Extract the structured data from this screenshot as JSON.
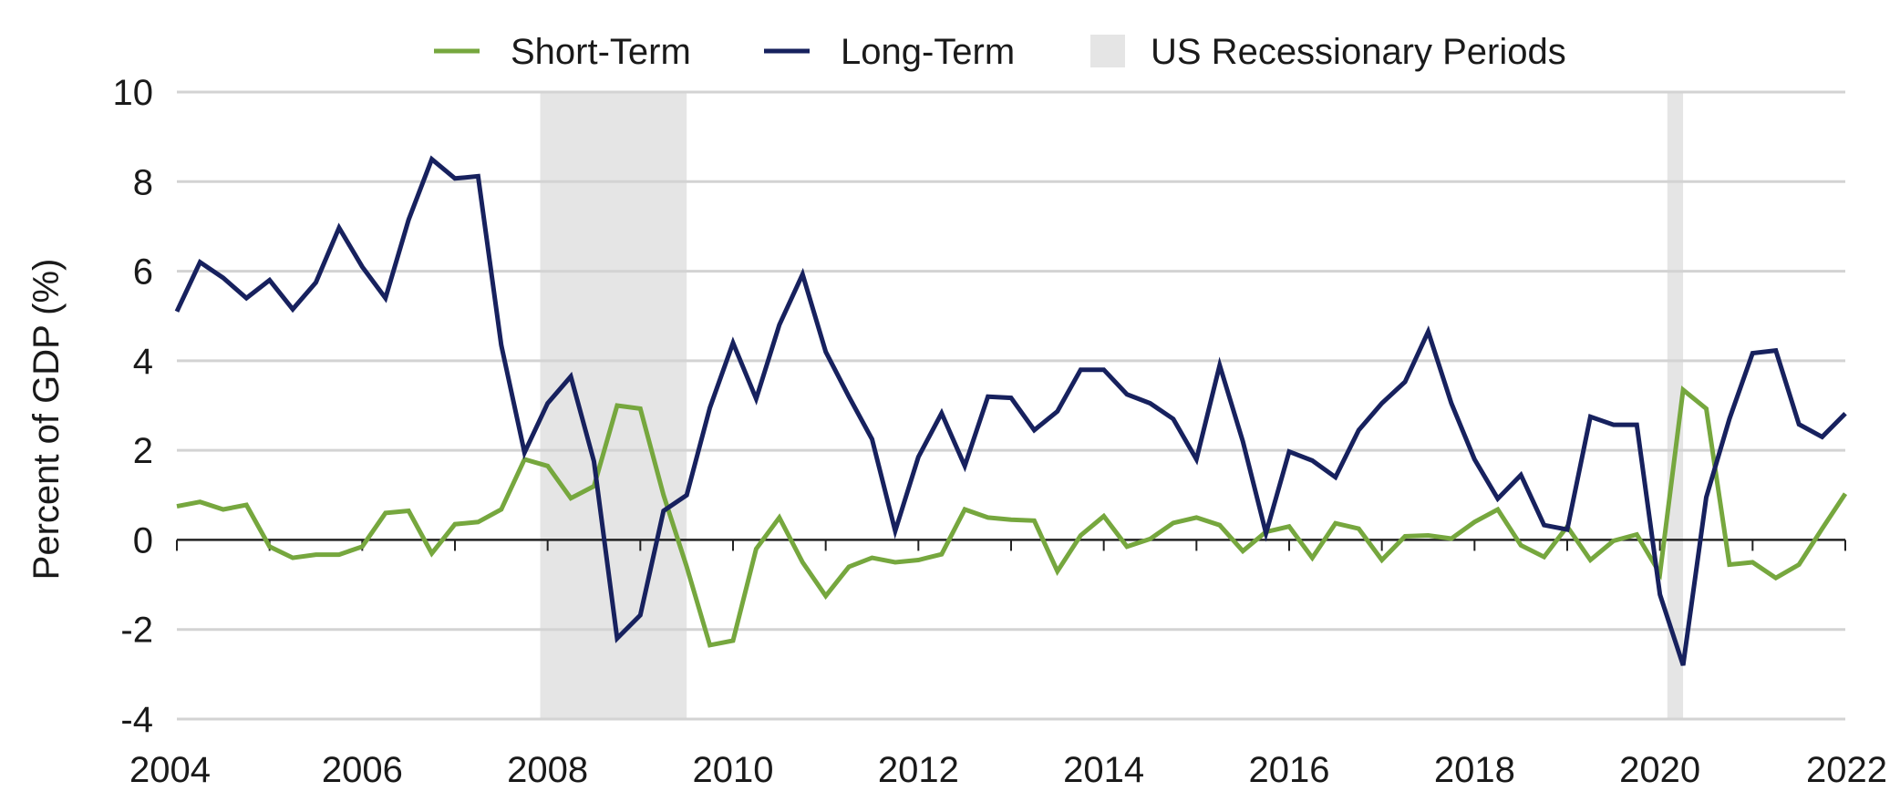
{
  "chart_data": {
    "type": "line",
    "title": "",
    "xlabel": "",
    "ylabel": "Percent of GDP (%)",
    "xlim": [
      2004,
      2022
    ],
    "ylim": [
      -4,
      10
    ],
    "x_ticks": [
      "2004",
      "2006",
      "2008",
      "2010",
      "2012",
      "2014",
      "2016",
      "2018",
      "2020",
      "2022"
    ],
    "y_ticks": [
      "10",
      "8",
      "6",
      "4",
      "2",
      "0",
      "-2",
      "-4"
    ],
    "grid": "horizontal",
    "legend_position": "top-center",
    "recession_label": "US Recessionary Periods",
    "recessions": [
      [
        2007.92,
        2009.5
      ],
      [
        2020.08,
        2020.25
      ]
    ],
    "series": [
      {
        "name": "Short-Term",
        "color": "#76a73e",
        "points": [
          [
            2004.0,
            0.75
          ],
          [
            2004.25,
            0.85
          ],
          [
            2004.5,
            0.68
          ],
          [
            2004.75,
            0.78
          ],
          [
            2005.0,
            -0.15
          ],
          [
            2005.25,
            -0.4
          ],
          [
            2005.5,
            -0.33
          ],
          [
            2005.75,
            -0.33
          ],
          [
            2006.0,
            -0.15
          ],
          [
            2006.25,
            0.6
          ],
          [
            2006.5,
            0.65
          ],
          [
            2006.75,
            -0.3
          ],
          [
            2007.0,
            0.35
          ],
          [
            2007.25,
            0.4
          ],
          [
            2007.5,
            0.68
          ],
          [
            2007.75,
            1.8
          ],
          [
            2008.0,
            1.65
          ],
          [
            2008.25,
            0.93
          ],
          [
            2008.5,
            1.2
          ],
          [
            2008.75,
            3.0
          ],
          [
            2009.0,
            2.93
          ],
          [
            2009.25,
            1.0
          ],
          [
            2009.5,
            -0.6
          ],
          [
            2009.75,
            -2.35
          ],
          [
            2010.0,
            -2.25
          ],
          [
            2010.25,
            -0.2
          ],
          [
            2010.5,
            0.5
          ],
          [
            2010.75,
            -0.5
          ],
          [
            2011.0,
            -1.25
          ],
          [
            2011.25,
            -0.6
          ],
          [
            2011.5,
            -0.4
          ],
          [
            2011.75,
            -0.5
          ],
          [
            2012.0,
            -0.45
          ],
          [
            2012.25,
            -0.32
          ],
          [
            2012.5,
            0.68
          ],
          [
            2012.75,
            0.5
          ],
          [
            2013.0,
            0.45
          ],
          [
            2013.25,
            0.43
          ],
          [
            2013.5,
            -0.7
          ],
          [
            2013.75,
            0.1
          ],
          [
            2014.0,
            0.53
          ],
          [
            2014.25,
            -0.15
          ],
          [
            2014.5,
            0.02
          ],
          [
            2014.75,
            0.38
          ],
          [
            2015.0,
            0.5
          ],
          [
            2015.25,
            0.33
          ],
          [
            2015.5,
            -0.25
          ],
          [
            2015.75,
            0.18
          ],
          [
            2016.0,
            0.3
          ],
          [
            2016.25,
            -0.4
          ],
          [
            2016.5,
            0.37
          ],
          [
            2016.75,
            0.25
          ],
          [
            2017.0,
            -0.45
          ],
          [
            2017.25,
            0.08
          ],
          [
            2017.5,
            0.1
          ],
          [
            2017.75,
            0.03
          ],
          [
            2018.0,
            0.4
          ],
          [
            2018.25,
            0.68
          ],
          [
            2018.5,
            -0.12
          ],
          [
            2018.75,
            -0.38
          ],
          [
            2019.0,
            0.3
          ],
          [
            2019.25,
            -0.45
          ],
          [
            2019.5,
            -0.02
          ],
          [
            2019.75,
            0.12
          ],
          [
            2020.0,
            -0.75
          ],
          [
            2020.25,
            3.35
          ],
          [
            2020.5,
            2.93
          ],
          [
            2020.75,
            -0.55
          ],
          [
            2021.0,
            -0.5
          ],
          [
            2021.25,
            -0.85
          ],
          [
            2021.5,
            -0.55
          ],
          [
            2021.75,
            0.25
          ],
          [
            2022.0,
            1.03
          ]
        ]
      },
      {
        "name": "Long-Term",
        "color": "#17215e",
        "points": [
          [
            2004.0,
            5.1
          ],
          [
            2004.25,
            6.2
          ],
          [
            2004.5,
            5.85
          ],
          [
            2004.75,
            5.4
          ],
          [
            2005.0,
            5.8
          ],
          [
            2005.25,
            5.15
          ],
          [
            2005.5,
            5.75
          ],
          [
            2005.75,
            6.97
          ],
          [
            2006.0,
            6.1
          ],
          [
            2006.25,
            5.4
          ],
          [
            2006.5,
            7.15
          ],
          [
            2006.75,
            8.5
          ],
          [
            2007.0,
            8.07
          ],
          [
            2007.25,
            8.12
          ],
          [
            2007.5,
            4.35
          ],
          [
            2007.75,
            1.95
          ],
          [
            2008.0,
            3.05
          ],
          [
            2008.25,
            3.65
          ],
          [
            2008.5,
            1.75
          ],
          [
            2008.75,
            -2.2
          ],
          [
            2009.0,
            -1.68
          ],
          [
            2009.25,
            0.65
          ],
          [
            2009.5,
            1.0
          ],
          [
            2009.75,
            2.95
          ],
          [
            2010.0,
            4.4
          ],
          [
            2010.25,
            3.15
          ],
          [
            2010.5,
            4.8
          ],
          [
            2010.75,
            5.93
          ],
          [
            2011.0,
            4.2
          ],
          [
            2011.25,
            3.2
          ],
          [
            2011.5,
            2.25
          ],
          [
            2011.75,
            0.2
          ],
          [
            2012.0,
            1.85
          ],
          [
            2012.25,
            2.83
          ],
          [
            2012.5,
            1.65
          ],
          [
            2012.75,
            3.2
          ],
          [
            2013.0,
            3.17
          ],
          [
            2013.25,
            2.45
          ],
          [
            2013.5,
            2.87
          ],
          [
            2013.75,
            3.8
          ],
          [
            2014.0,
            3.8
          ],
          [
            2014.25,
            3.25
          ],
          [
            2014.5,
            3.05
          ],
          [
            2014.75,
            2.7
          ],
          [
            2015.0,
            1.8
          ],
          [
            2015.25,
            3.9
          ],
          [
            2015.5,
            2.2
          ],
          [
            2015.75,
            0.15
          ],
          [
            2016.0,
            1.97
          ],
          [
            2016.25,
            1.77
          ],
          [
            2016.5,
            1.4
          ],
          [
            2016.75,
            2.45
          ],
          [
            2017.0,
            3.05
          ],
          [
            2017.25,
            3.53
          ],
          [
            2017.5,
            4.65
          ],
          [
            2017.75,
            3.05
          ],
          [
            2018.0,
            1.8
          ],
          [
            2018.25,
            0.92
          ],
          [
            2018.5,
            1.45
          ],
          [
            2018.75,
            0.33
          ],
          [
            2019.0,
            0.23
          ],
          [
            2019.25,
            2.75
          ],
          [
            2019.5,
            2.57
          ],
          [
            2019.75,
            2.57
          ],
          [
            2020.0,
            -1.22
          ],
          [
            2020.25,
            -2.8
          ],
          [
            2020.5,
            0.95
          ],
          [
            2020.75,
            2.7
          ],
          [
            2021.0,
            4.17
          ],
          [
            2021.25,
            4.23
          ],
          [
            2021.5,
            2.58
          ],
          [
            2021.75,
            2.3
          ],
          [
            2022.0,
            2.82
          ]
        ]
      }
    ]
  }
}
